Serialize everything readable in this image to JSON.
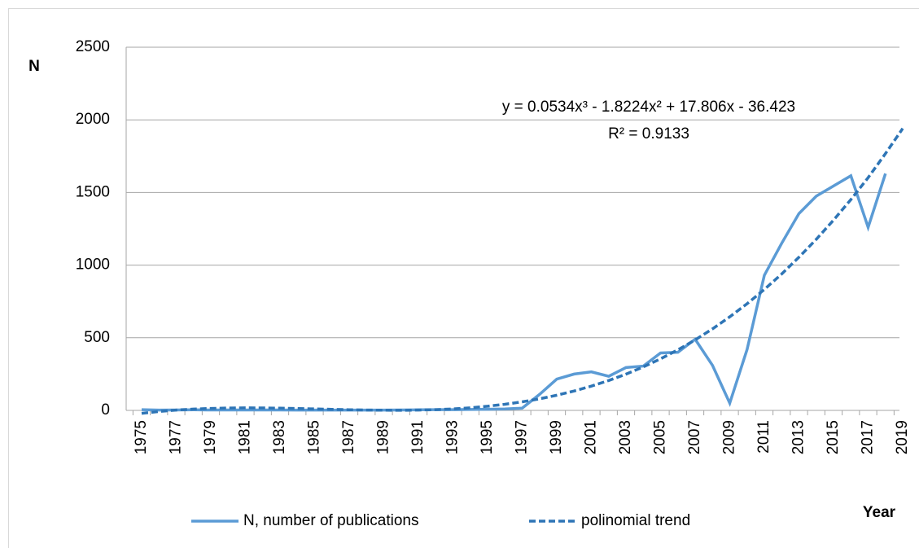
{
  "chart_data": {
    "type": "line",
    "y_label": "N",
    "x_label": "Year",
    "annotations": [
      "y = 0.0534x³ - 1.8224x² + 17.806x - 36.423",
      "R² = 0.9133"
    ],
    "categories": [
      "1975",
      null,
      "1977",
      null,
      "1979",
      null,
      "1981",
      null,
      "1983",
      null,
      "1985",
      null,
      "1987",
      null,
      "1989",
      null,
      "1991",
      null,
      "1993",
      null,
      "1995",
      null,
      "1997",
      null,
      "1999",
      null,
      "2001",
      null,
      "2003",
      null,
      "2005",
      null,
      "2007",
      null,
      "2009",
      null,
      "2011",
      null,
      "2013",
      null,
      "2015",
      null,
      "2017",
      null,
      "2019"
    ],
    "series": [
      {
        "name": "N, number of publications",
        "color": "#5b9bd5",
        "dash": false,
        "values": [
          5,
          2,
          3,
          4,
          3,
          3,
          3,
          3,
          3,
          2,
          2,
          2,
          2,
          2,
          2,
          3,
          4,
          5,
          5,
          6,
          8,
          10,
          15,
          110,
          215,
          250,
          265,
          235,
          295,
          305,
          395,
          400,
          490,
          310,
          50,
          420,
          930,
          1150,
          1355,
          1475,
          1545,
          1615,
          1260,
          1630,
          null
        ]
      },
      {
        "name": "polinomial trend",
        "color": "#2e75b6",
        "dash": true,
        "values": [
          -20.4,
          -7.7,
          2.0,
          9.1,
          13.7,
          16.3,
          17.2,
          16.7,
          15.2,
          12.8,
          10.0,
          7.1,
          4.4,
          2.2,
          0.9,
          0.7,
          2.0,
          5.1,
          10.3,
          17.9,
          28.4,
          41.9,
          58.8,
          79.4,
          104.1,
          133.2,
          166.9,
          205.6,
          249.7,
          299.4,
          355.1,
          417.1,
          485.7,
          561.1,
          643.9,
          734.3,
          832.5,
          939.0,
          1054.1,
          1177.6,
          1310.0,
          1451.4,
          1602.0,
          1767.7,
          1940.6
        ]
      }
    ],
    "ylim": [
      0,
      2500
    ],
    "yticks": [
      0,
      500,
      1000,
      1500,
      2000,
      2500
    ],
    "grid": true,
    "legend": "bottom"
  }
}
